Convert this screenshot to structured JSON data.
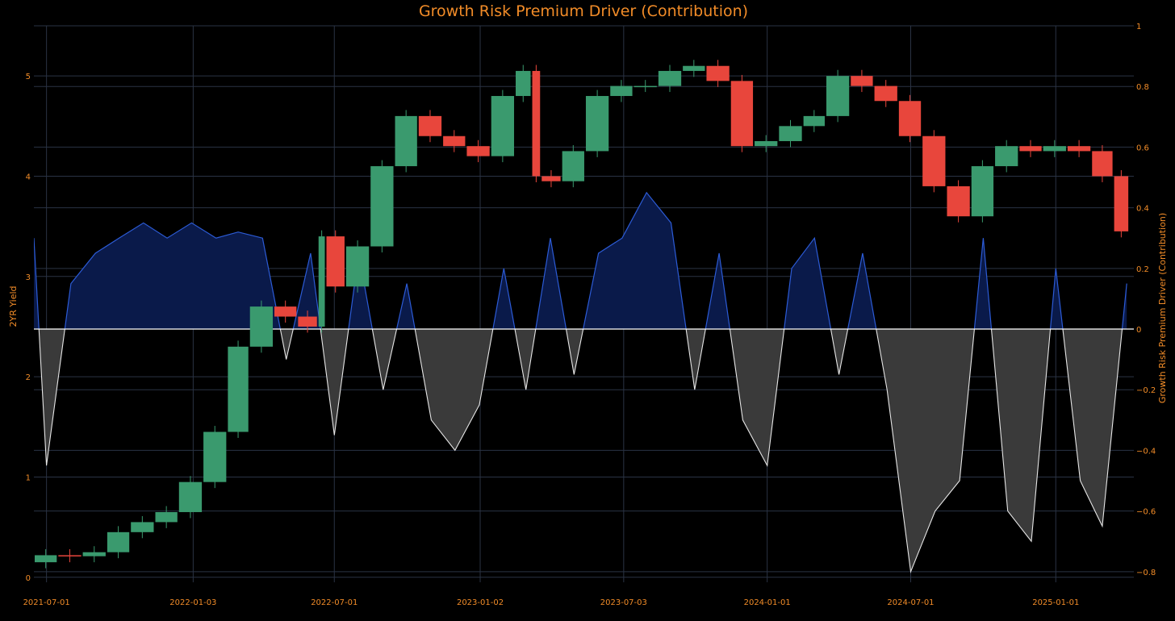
{
  "chart_data": {
    "type": "line",
    "title": "Growth Risk Premium Driver (Contribution)",
    "ylabel_left": "2YR Yield",
    "ylabel_right": "Growth Risk Premium Driver (Contribution)",
    "x_range": [
      "2021-06-15",
      "2025-04-10"
    ],
    "x_ticks": [
      "2021-07-01",
      "2022-01-03",
      "2022-07-01",
      "2023-01-02",
      "2023-07-03",
      "2024-01-01",
      "2024-07-01",
      "2025-01-01"
    ],
    "y_left_range": [
      -0.05,
      5.5
    ],
    "y_left_ticks": [
      "0",
      "1",
      "2",
      "3",
      "4",
      "5"
    ],
    "y_right_range": [
      -0.835,
      1.0
    ],
    "y_right_ticks": [
      "1",
      "0.8",
      "0.6",
      "0.4",
      "0.2",
      "0",
      "−0.2",
      "−0.4",
      "−0.6",
      "−0.8"
    ],
    "grid": true,
    "colors": {
      "background": "#000000",
      "grid": "#2a3344",
      "up_candle": "#3a9a6e",
      "down_candle": "#e8463c",
      "positive_line": "#2c5bd6",
      "positive_fill": "#0a1a4a",
      "negative_line": "#e6e6e6",
      "negative_fill": "#3a3a3a",
      "zero_line": "#ffffff",
      "text": "#f28c28"
    },
    "series": [
      {
        "name": "2YR Yield",
        "axis": "left",
        "style": "candlestick",
        "x": [
          "2021-06-15",
          "2021-07-15",
          "2021-08-15",
          "2021-09-15",
          "2021-10-15",
          "2021-11-15",
          "2021-12-15",
          "2022-01-15",
          "2022-02-15",
          "2022-03-15",
          "2022-04-15",
          "2022-05-15",
          "2022-06-10",
          "2022-06-20",
          "2022-07-15",
          "2022-08-15",
          "2022-09-15",
          "2022-10-15",
          "2022-11-15",
          "2022-12-15",
          "2023-01-15",
          "2023-02-15",
          "2023-03-08",
          "2023-03-20",
          "2023-04-15",
          "2023-05-15",
          "2023-06-15",
          "2023-07-15",
          "2023-08-15",
          "2023-09-15",
          "2023-10-15",
          "2023-11-15",
          "2023-12-15",
          "2024-01-15",
          "2024-02-15",
          "2024-03-15",
          "2024-04-15",
          "2024-05-15",
          "2024-06-15",
          "2024-07-15",
          "2024-08-15",
          "2024-09-15",
          "2024-10-15",
          "2024-11-15",
          "2024-12-15",
          "2025-01-15",
          "2025-02-15",
          "2025-03-15",
          "2025-04-04"
        ],
        "values": [
          0.15,
          0.22,
          0.21,
          0.25,
          0.45,
          0.55,
          0.65,
          0.95,
          1.45,
          2.3,
          2.7,
          2.6,
          2.5,
          3.4,
          2.9,
          3.3,
          4.1,
          4.6,
          4.4,
          4.3,
          4.2,
          4.8,
          5.05,
          4.0,
          3.95,
          4.25,
          4.8,
          4.9,
          4.9,
          5.05,
          5.1,
          4.95,
          4.3,
          4.35,
          4.5,
          4.6,
          5.0,
          4.9,
          4.75,
          4.4,
          3.9,
          3.6,
          4.1,
          4.3,
          4.25,
          4.3,
          4.25,
          4.0,
          3.45
        ]
      },
      {
        "name": "Growth Risk Premium Driver (Contribution)",
        "axis": "right",
        "style": "area-line",
        "x": [
          "2021-06-15",
          "2021-07-01",
          "2021-08-01",
          "2021-09-01",
          "2021-10-01",
          "2021-11-01",
          "2021-12-01",
          "2022-01-01",
          "2022-02-01",
          "2022-03-01",
          "2022-04-01",
          "2022-05-01",
          "2022-06-01",
          "2022-07-01",
          "2022-08-01",
          "2022-09-01",
          "2022-10-01",
          "2022-11-01",
          "2022-12-01",
          "2023-01-01",
          "2023-02-01",
          "2023-03-01",
          "2023-04-01",
          "2023-05-01",
          "2023-06-01",
          "2023-07-01",
          "2023-08-01",
          "2023-09-01",
          "2023-10-01",
          "2023-11-01",
          "2023-12-01",
          "2024-01-01",
          "2024-02-01",
          "2024-03-01",
          "2024-04-01",
          "2024-05-01",
          "2024-06-01",
          "2024-07-01",
          "2024-08-01",
          "2024-09-01",
          "2024-10-01",
          "2024-11-01",
          "2024-12-01",
          "2025-01-01",
          "2025-02-01",
          "2025-03-01",
          "2025-04-01"
        ],
        "values": [
          0.3,
          -0.45,
          0.15,
          0.25,
          0.3,
          0.35,
          0.3,
          0.35,
          0.3,
          0.32,
          0.3,
          -0.1,
          0.25,
          -0.35,
          0.25,
          -0.2,
          0.15,
          -0.3,
          -0.4,
          -0.25,
          0.2,
          -0.2,
          0.3,
          -0.15,
          0.25,
          0.3,
          0.45,
          0.35,
          -0.2,
          0.25,
          -0.3,
          -0.45,
          0.2,
          0.3,
          -0.15,
          0.25,
          -0.2,
          -0.8,
          -0.6,
          -0.5,
          0.3,
          -0.6,
          -0.7,
          0.2,
          -0.5,
          -0.65,
          0.15
        ]
      }
    ]
  }
}
